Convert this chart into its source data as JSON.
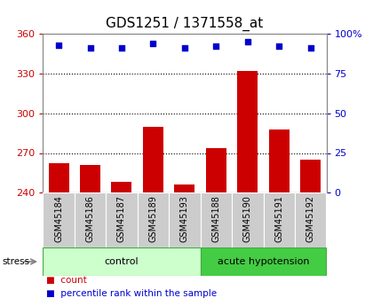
{
  "title": "GDS1251 / 1371558_at",
  "samples": [
    "GSM45184",
    "GSM45186",
    "GSM45187",
    "GSM45189",
    "GSM45193",
    "GSM45188",
    "GSM45190",
    "GSM45191",
    "GSM45192"
  ],
  "counts": [
    262,
    261,
    248,
    290,
    246,
    274,
    332,
    288,
    265
  ],
  "percentiles": [
    93,
    91,
    91,
    94,
    91,
    92,
    95,
    92,
    91
  ],
  "groups": [
    {
      "label": "control",
      "start": 0,
      "end": 5
    },
    {
      "label": "acute hypotension",
      "start": 5,
      "end": 9
    }
  ],
  "stress_label": "stress",
  "ylim_left": [
    240,
    360
  ],
  "ylim_right": [
    0,
    100
  ],
  "yticks_left": [
    240,
    270,
    300,
    330,
    360
  ],
  "yticks_right": [
    0,
    25,
    50,
    75,
    100
  ],
  "bar_color": "#cc0000",
  "dot_color": "#0000cc",
  "group_bg_color_control": "#ccffcc",
  "group_bg_color_acute": "#44cc44",
  "tick_bg_color": "#cccccc",
  "legend_red_label": "count",
  "legend_blue_label": "percentile rank within the sample",
  "title_fontsize": 11,
  "tick_fontsize": 8,
  "label_fontsize": 7,
  "group_fontsize": 8
}
